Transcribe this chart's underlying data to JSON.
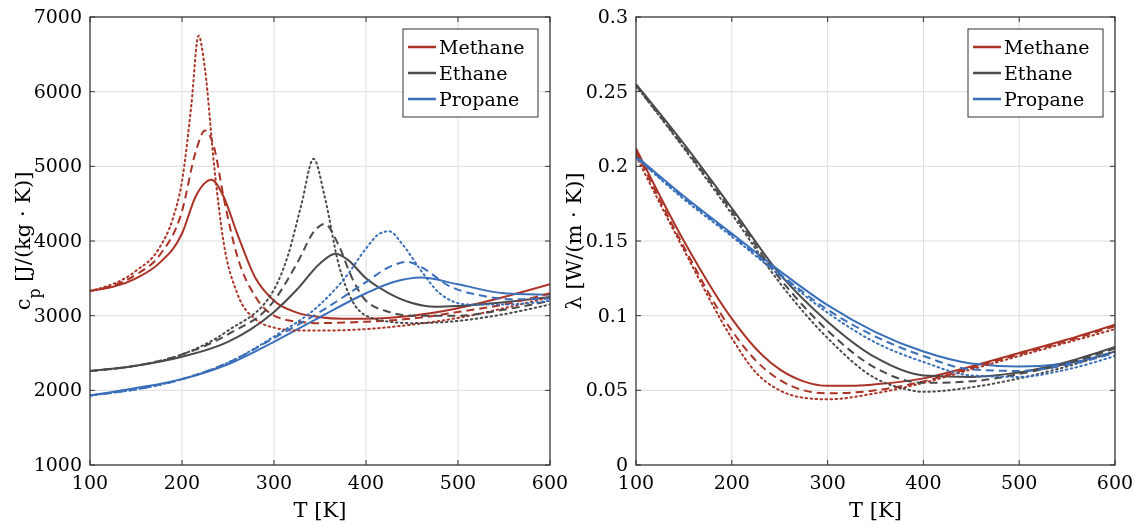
{
  "chart_data": [
    {
      "type": "line",
      "xlabel": "T [K]",
      "ylabel": "c$_{p}$ [J/(kg · K)]",
      "xlim": [
        100,
        600
      ],
      "ylim": [
        1000,
        7000
      ],
      "xticks": [
        100,
        200,
        300,
        400,
        500,
        600
      ],
      "yticks": [
        1000,
        2000,
        3000,
        4000,
        5000,
        6000,
        7000
      ],
      "grid": true,
      "legend": "top right",
      "series": [
        {
          "name": "Methane",
          "color": "#ab3326",
          "line_style": "solid",
          "x": [
            100,
            150,
            175,
            200,
            215,
            232,
            245,
            260,
            280,
            300,
            325,
            350,
            375,
            400,
            450,
            500,
            550,
            600
          ],
          "values": [
            3330,
            3500,
            3700,
            4100,
            4600,
            4820,
            4600,
            4100,
            3500,
            3200,
            3040,
            2980,
            2960,
            2960,
            3000,
            3100,
            3250,
            3420
          ]
        },
        {
          "name": "Ethane",
          "color": "#4a4a4a",
          "line_style": "solid",
          "x": [
            100,
            150,
            200,
            250,
            275,
            300,
            325,
            350,
            367,
            380,
            400,
            425,
            450,
            475,
            500,
            550,
            600
          ],
          "values": [
            2260,
            2330,
            2450,
            2650,
            2820,
            3050,
            3350,
            3700,
            3830,
            3750,
            3500,
            3300,
            3170,
            3120,
            3130,
            3180,
            3250
          ]
        },
        {
          "name": "Propane",
          "color": "#3a6fba",
          "line_style": "solid",
          "x": [
            100,
            150,
            200,
            250,
            300,
            350,
            400,
            430,
            460,
            500,
            550,
            600
          ],
          "values": [
            1930,
            2030,
            2150,
            2350,
            2650,
            2980,
            3300,
            3450,
            3510,
            3420,
            3300,
            3280
          ]
        },
        {
          "color": "#ab3326",
          "line_style": "dashed",
          "x": [
            100,
            150,
            175,
            200,
            215,
            225,
            235,
            245,
            260,
            280,
            300,
            325,
            350,
            400,
            450,
            500,
            550,
            600
          ],
          "values": [
            3330,
            3550,
            3800,
            4400,
            5200,
            5480,
            5250,
            4600,
            3800,
            3250,
            3000,
            2920,
            2900,
            2920,
            2960,
            3050,
            3150,
            3300
          ]
        },
        {
          "color": "#ab3326",
          "line_style": "dotted",
          "x": [
            100,
            150,
            175,
            190,
            200,
            210,
            218,
            225,
            235,
            245,
            260,
            280,
            300,
            325,
            350,
            400,
            450,
            500,
            550,
            600
          ],
          "values": [
            3330,
            3600,
            3900,
            4300,
            4800,
            5800,
            6750,
            6300,
            5000,
            4000,
            3300,
            2950,
            2840,
            2800,
            2800,
            2820,
            2880,
            2970,
            3100,
            3250
          ]
        },
        {
          "color": "#4a4a4a",
          "line_style": "dashed",
          "x": [
            100,
            150,
            200,
            250,
            300,
            325,
            345,
            355,
            370,
            385,
            400,
            425,
            450,
            500,
            550,
            600
          ],
          "values": [
            2260,
            2330,
            2480,
            2750,
            3200,
            3700,
            4150,
            4230,
            3950,
            3500,
            3200,
            3050,
            3000,
            3000,
            3080,
            3200
          ]
        },
        {
          "color": "#4a4a4a",
          "line_style": "dotted",
          "x": [
            100,
            150,
            200,
            250,
            300,
            315,
            330,
            343,
            355,
            370,
            385,
            400,
            425,
            450,
            500,
            550,
            600
          ],
          "values": [
            2260,
            2330,
            2480,
            2800,
            3350,
            3800,
            4500,
            5100,
            4600,
            3700,
            3200,
            3000,
            2920,
            2900,
            2930,
            3020,
            3150
          ]
        },
        {
          "color": "#3a6fba",
          "line_style": "dashed",
          "x": [
            100,
            200,
            250,
            300,
            350,
            400,
            425,
            445,
            460,
            490,
            525,
            560,
            600
          ],
          "values": [
            1930,
            2150,
            2370,
            2700,
            3050,
            3450,
            3650,
            3720,
            3650,
            3400,
            3270,
            3220,
            3230
          ]
        },
        {
          "color": "#3a6fba",
          "line_style": "dotted",
          "x": [
            100,
            200,
            250,
            300,
            350,
            380,
            400,
            415,
            425,
            440,
            460,
            480,
            510,
            550,
            600
          ],
          "values": [
            1930,
            2150,
            2370,
            2720,
            3150,
            3550,
            3900,
            4100,
            4130,
            3950,
            3600,
            3300,
            3150,
            3150,
            3200
          ]
        }
      ]
    },
    {
      "type": "line",
      "xlabel": "T [K]",
      "ylabel": "λ [W/(m · K)]",
      "xlim": [
        100,
        600
      ],
      "ylim": [
        0,
        0.3
      ],
      "xticks": [
        100,
        200,
        300,
        400,
        500,
        600
      ],
      "yticks": [
        0,
        0.05,
        0.1,
        0.15,
        0.2,
        0.25,
        0.3
      ],
      "grid": true,
      "legend": "top right",
      "series": [
        {
          "name": "Methane",
          "color": "#ab3326",
          "line_style": "solid",
          "x": [
            100,
            150,
            200,
            225,
            250,
            275,
            300,
            325,
            350,
            400,
            450,
            500,
            550,
            600
          ],
          "values": [
            0.212,
            0.15,
            0.098,
            0.078,
            0.064,
            0.056,
            0.053,
            0.053,
            0.054,
            0.058,
            0.066,
            0.075,
            0.084,
            0.094
          ]
        },
        {
          "name": "Ethane",
          "color": "#4a4a4a",
          "line_style": "solid",
          "x": [
            100,
            150,
            200,
            250,
            300,
            350,
            400,
            450,
            500,
            550,
            600
          ],
          "values": [
            0.255,
            0.215,
            0.172,
            0.128,
            0.096,
            0.072,
            0.06,
            0.059,
            0.062,
            0.069,
            0.079
          ]
        },
        {
          "name": "Propane",
          "color": "#3a6fba",
          "line_style": "solid",
          "x": [
            100,
            150,
            200,
            250,
            300,
            350,
            400,
            450,
            500,
            550,
            600
          ],
          "values": [
            0.207,
            0.18,
            0.155,
            0.13,
            0.107,
            0.089,
            0.076,
            0.068,
            0.066,
            0.068,
            0.076
          ]
        },
        {
          "color": "#ab3326",
          "line_style": "dashed",
          "x": [
            100,
            150,
            200,
            225,
            250,
            275,
            300,
            350,
            400,
            450,
            500,
            550,
            600
          ],
          "values": [
            0.21,
            0.146,
            0.09,
            0.07,
            0.057,
            0.05,
            0.048,
            0.05,
            0.056,
            0.065,
            0.074,
            0.083,
            0.093
          ]
        },
        {
          "color": "#ab3326",
          "line_style": "dotted",
          "x": [
            100,
            150,
            200,
            225,
            250,
            275,
            300,
            350,
            400,
            450,
            500,
            550,
            600
          ],
          "values": [
            0.207,
            0.144,
            0.085,
            0.062,
            0.05,
            0.045,
            0.044,
            0.048,
            0.055,
            0.064,
            0.073,
            0.082,
            0.091
          ]
        },
        {
          "color": "#4a4a4a",
          "line_style": "dashed",
          "x": [
            100,
            150,
            200,
            250,
            300,
            350,
            400,
            450,
            500,
            550,
            600
          ],
          "values": [
            0.254,
            0.213,
            0.17,
            0.125,
            0.09,
            0.065,
            0.055,
            0.056,
            0.061,
            0.068,
            0.078
          ]
        },
        {
          "color": "#4a4a4a",
          "line_style": "dotted",
          "x": [
            100,
            150,
            200,
            250,
            300,
            350,
            380,
            400,
            450,
            500,
            550,
            600
          ],
          "values": [
            0.254,
            0.212,
            0.168,
            0.122,
            0.085,
            0.058,
            0.051,
            0.049,
            0.052,
            0.058,
            0.066,
            0.076
          ]
        },
        {
          "color": "#3a6fba",
          "line_style": "dashed",
          "x": [
            100,
            150,
            200,
            250,
            300,
            350,
            400,
            450,
            500,
            550,
            600
          ],
          "values": [
            0.206,
            0.179,
            0.154,
            0.128,
            0.104,
            0.086,
            0.073,
            0.064,
            0.063,
            0.067,
            0.075
          ]
        },
        {
          "color": "#3a6fba",
          "line_style": "dotted",
          "x": [
            100,
            150,
            200,
            250,
            300,
            350,
            400,
            450,
            500,
            550,
            600
          ],
          "values": [
            0.206,
            0.178,
            0.153,
            0.127,
            0.102,
            0.082,
            0.069,
            0.06,
            0.059,
            0.064,
            0.073
          ]
        }
      ]
    }
  ]
}
